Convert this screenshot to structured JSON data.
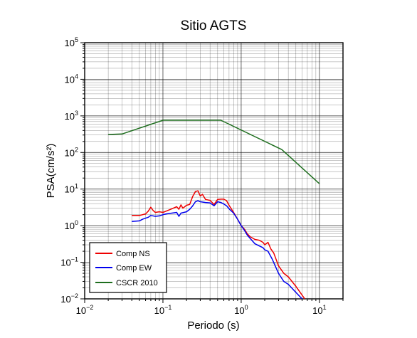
{
  "chart_data": {
    "type": "line",
    "title": "Sitio AGTS",
    "xlabel": "Periodo (s)",
    "ylabel": "PSA(cm/s²)",
    "x_scale": "log",
    "y_scale": "log",
    "xlim": [
      0.01,
      20
    ],
    "ylim": [
      0.01,
      100000
    ],
    "grid": true,
    "legend_position": "bottom-left",
    "x_ticks": [
      {
        "base": "10",
        "exp": "−2",
        "value": 0.01
      },
      {
        "base": "10",
        "exp": "−1",
        "value": 0.1
      },
      {
        "base": "10",
        "exp": "0",
        "value": 1
      },
      {
        "base": "10",
        "exp": "1",
        "value": 10
      }
    ],
    "y_ticks": [
      {
        "base": "10",
        "exp": "−2",
        "value": 0.01
      },
      {
        "base": "10",
        "exp": "−1",
        "value": 0.1
      },
      {
        "base": "10",
        "exp": "0",
        "value": 1
      },
      {
        "base": "10",
        "exp": "1",
        "value": 10
      },
      {
        "base": "10",
        "exp": "2",
        "value": 100
      },
      {
        "base": "10",
        "exp": "3",
        "value": 1000
      },
      {
        "base": "10",
        "exp": "4",
        "value": 10000
      },
      {
        "base": "10",
        "exp": "5",
        "value": 100000
      }
    ],
    "series": [
      {
        "name": "Comp NS",
        "color": "#ee0000",
        "points": [
          [
            0.04,
            1.9
          ],
          [
            0.05,
            1.9
          ],
          [
            0.06,
            2.1
          ],
          [
            0.065,
            2.5
          ],
          [
            0.07,
            3.2
          ],
          [
            0.075,
            2.6
          ],
          [
            0.08,
            2.3
          ],
          [
            0.09,
            2.4
          ],
          [
            0.1,
            2.3
          ],
          [
            0.11,
            2.5
          ],
          [
            0.13,
            2.9
          ],
          [
            0.15,
            3.3
          ],
          [
            0.16,
            2.8
          ],
          [
            0.17,
            3.7
          ],
          [
            0.18,
            3.0
          ],
          [
            0.2,
            3.6
          ],
          [
            0.22,
            3.8
          ],
          [
            0.24,
            6.3
          ],
          [
            0.26,
            8.5
          ],
          [
            0.28,
            9.0
          ],
          [
            0.3,
            6.5
          ],
          [
            0.32,
            7.2
          ],
          [
            0.35,
            5.2
          ],
          [
            0.4,
            4.9
          ],
          [
            0.45,
            3.8
          ],
          [
            0.5,
            5.2
          ],
          [
            0.55,
            5.3
          ],
          [
            0.6,
            5.3
          ],
          [
            0.65,
            4.8
          ],
          [
            0.7,
            3.6
          ],
          [
            0.8,
            2.3
          ],
          [
            0.9,
            1.5
          ],
          [
            1.0,
            1.0
          ],
          [
            1.1,
            0.8
          ],
          [
            1.2,
            0.6
          ],
          [
            1.3,
            0.5
          ],
          [
            1.5,
            0.42
          ],
          [
            1.7,
            0.4
          ],
          [
            1.9,
            0.35
          ],
          [
            2.0,
            0.3
          ],
          [
            2.2,
            0.35
          ],
          [
            2.4,
            0.23
          ],
          [
            2.6,
            0.18
          ],
          [
            3.0,
            0.08
          ],
          [
            3.5,
            0.05
          ],
          [
            4.0,
            0.04
          ],
          [
            5.0,
            0.022
          ],
          [
            6.5,
            0.01
          ]
        ]
      },
      {
        "name": "Comp EW",
        "color": "#0000ee",
        "points": [
          [
            0.04,
            1.3
          ],
          [
            0.05,
            1.35
          ],
          [
            0.055,
            1.5
          ],
          [
            0.06,
            1.6
          ],
          [
            0.065,
            1.7
          ],
          [
            0.07,
            1.9
          ],
          [
            0.08,
            1.8
          ],
          [
            0.09,
            1.85
          ],
          [
            0.1,
            2.0
          ],
          [
            0.11,
            2.1
          ],
          [
            0.13,
            2.2
          ],
          [
            0.15,
            2.3
          ],
          [
            0.16,
            1.8
          ],
          [
            0.17,
            2.2
          ],
          [
            0.2,
            2.4
          ],
          [
            0.22,
            2.8
          ],
          [
            0.24,
            3.5
          ],
          [
            0.26,
            4.5
          ],
          [
            0.28,
            4.8
          ],
          [
            0.3,
            4.5
          ],
          [
            0.35,
            4.3
          ],
          [
            0.4,
            4.2
          ],
          [
            0.45,
            3.5
          ],
          [
            0.5,
            4.5
          ],
          [
            0.55,
            4.3
          ],
          [
            0.6,
            3.9
          ],
          [
            0.65,
            3.5
          ],
          [
            0.7,
            2.9
          ],
          [
            0.8,
            2.2
          ],
          [
            0.9,
            1.5
          ],
          [
            1.0,
            1.0
          ],
          [
            1.1,
            0.75
          ],
          [
            1.2,
            0.55
          ],
          [
            1.3,
            0.45
          ],
          [
            1.5,
            0.32
          ],
          [
            1.7,
            0.28
          ],
          [
            1.9,
            0.25
          ],
          [
            2.0,
            0.22
          ],
          [
            2.2,
            0.2
          ],
          [
            2.5,
            0.12
          ],
          [
            3.0,
            0.05
          ],
          [
            3.5,
            0.03
          ],
          [
            4.0,
            0.025
          ],
          [
            5.0,
            0.015
          ],
          [
            6.0,
            0.01
          ]
        ]
      },
      {
        "name": "CSCR 2010",
        "color": "#1e6e1e",
        "points": [
          [
            0.02,
            310
          ],
          [
            0.03,
            320
          ],
          [
            0.1,
            760
          ],
          [
            0.55,
            760
          ],
          [
            3.3,
            120
          ],
          [
            10.0,
            14
          ]
        ]
      }
    ]
  }
}
